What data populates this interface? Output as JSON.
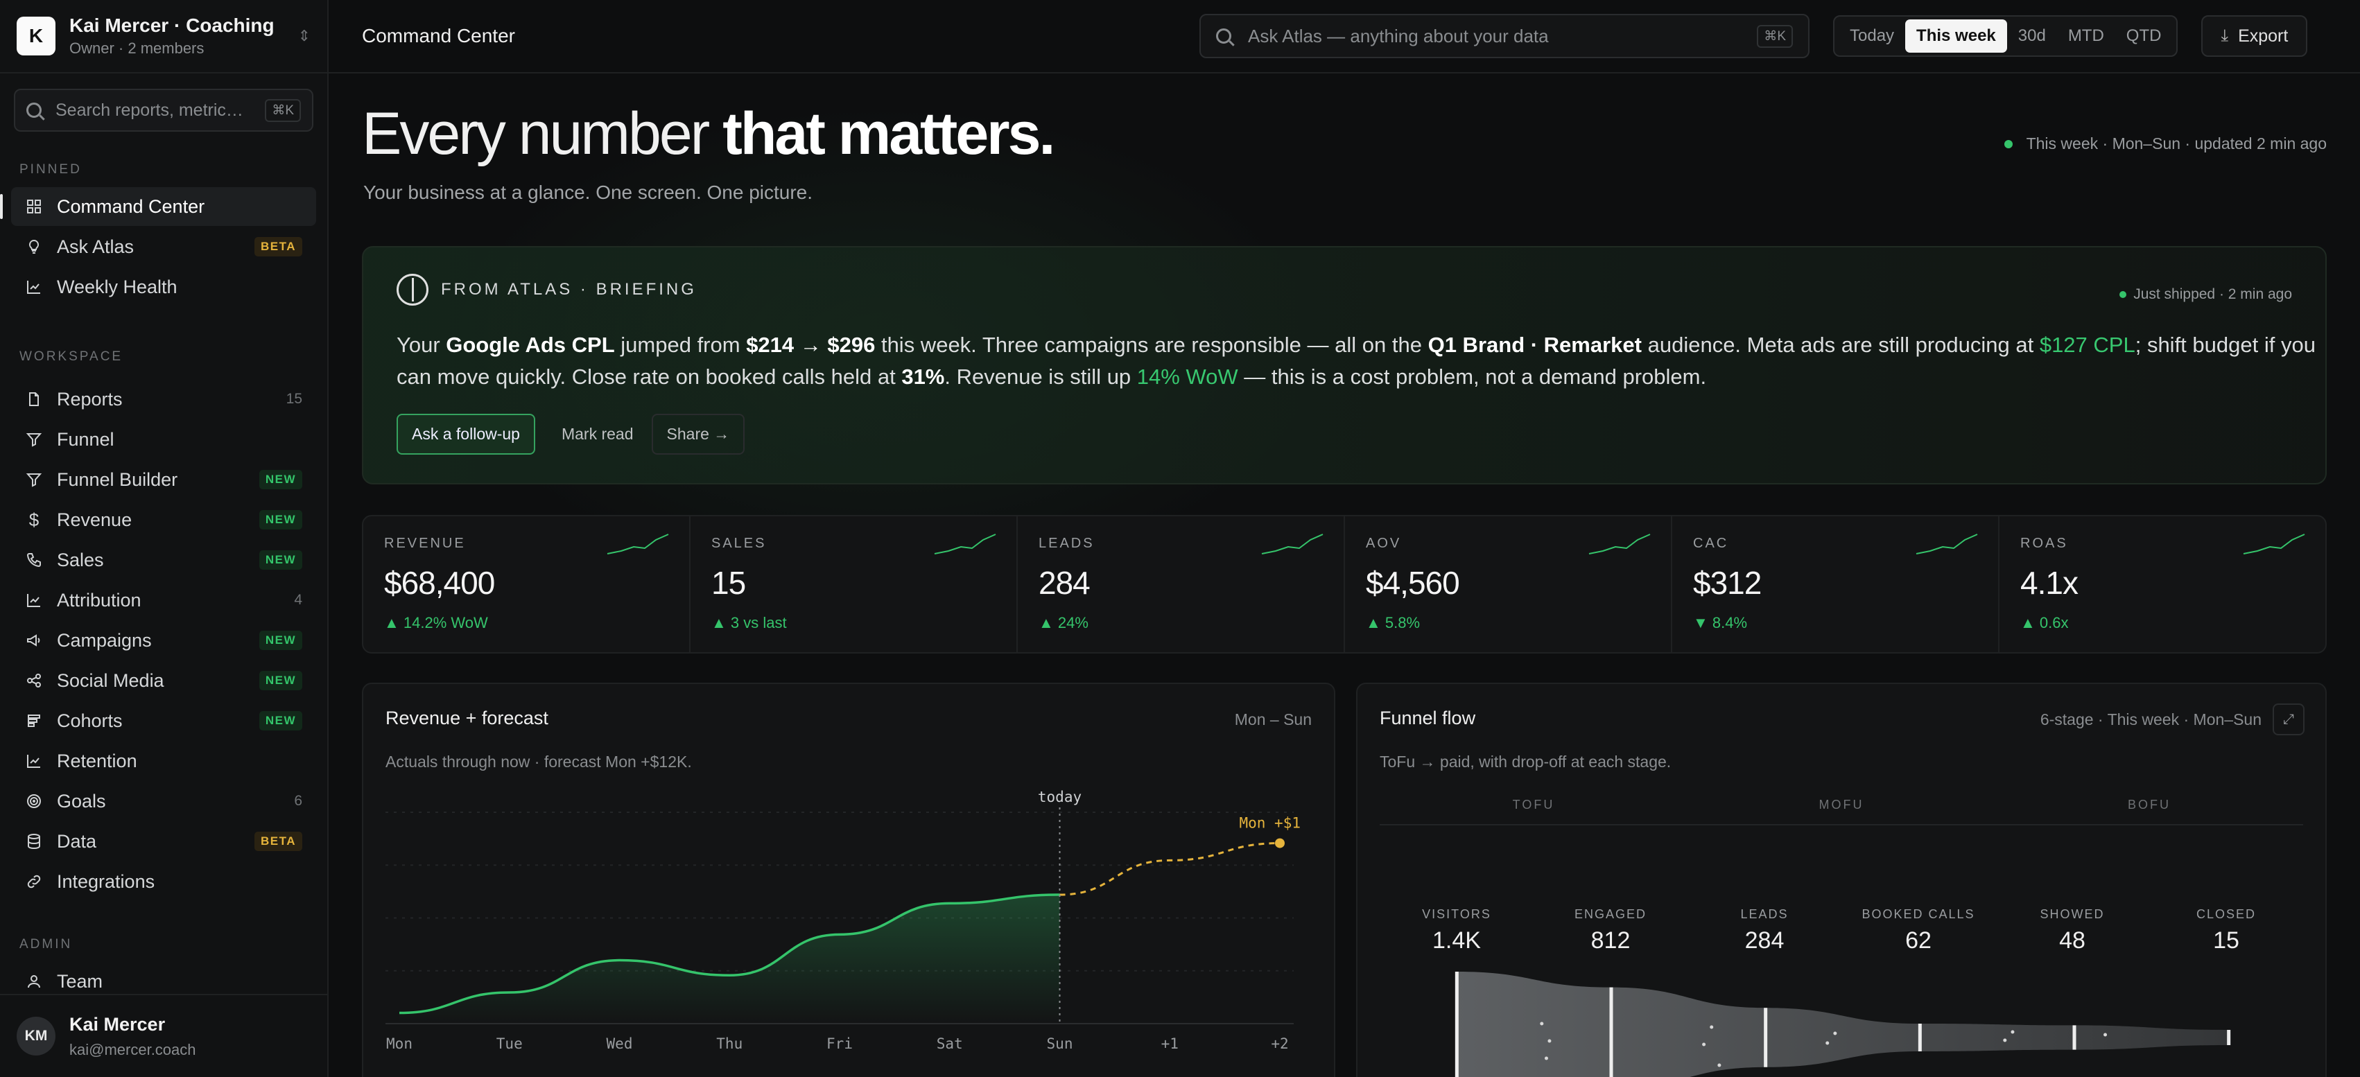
{
  "org": {
    "initial": "K",
    "name": "Kai Mercer · Coaching",
    "subtitle": "Owner · 2 members"
  },
  "sidebar_search": {
    "placeholder": "Search reports, metric…",
    "shortcut": "⌘K"
  },
  "pinned": {
    "label": "PINNED",
    "items": [
      {
        "label": "Command Center",
        "icon": "grid-icon"
      },
      {
        "label": "Ask Atlas",
        "icon": "bulb-icon",
        "badge": "BETA"
      },
      {
        "label": "Weekly Health",
        "icon": "chart-line-icon"
      }
    ]
  },
  "workspace": {
    "label": "WORKSPACE",
    "items": [
      {
        "label": "Reports",
        "icon": "file-icon",
        "count": "15"
      },
      {
        "label": "Funnel",
        "icon": "funnel-icon"
      },
      {
        "label": "Funnel Builder",
        "icon": "funnel-icon",
        "badge": "NEW"
      },
      {
        "label": "Revenue",
        "icon": "dollar-icon",
        "badge": "NEW"
      },
      {
        "label": "Sales",
        "icon": "phone-icon",
        "badge": "NEW"
      },
      {
        "label": "Attribution",
        "icon": "chart-line-icon",
        "count": "4"
      },
      {
        "label": "Campaigns",
        "icon": "megaphone-icon",
        "badge": "NEW"
      },
      {
        "label": "Social Media",
        "icon": "share-icon",
        "badge": "NEW"
      },
      {
        "label": "Cohorts",
        "icon": "stack-icon",
        "badge": "NEW"
      },
      {
        "label": "Retention",
        "icon": "chart-line-icon"
      },
      {
        "label": "Goals",
        "icon": "target-icon",
        "count": "6"
      },
      {
        "label": "Data",
        "icon": "database-icon",
        "badge": "BETA"
      },
      {
        "label": "Integrations",
        "icon": "link-icon"
      }
    ]
  },
  "admin": {
    "label": "ADMIN",
    "items": [
      {
        "label": "Team",
        "icon": "user-icon"
      }
    ]
  },
  "user": {
    "initials": "KM",
    "name": "Kai Mercer",
    "email": "kai@mercer.coach"
  },
  "topbar": {
    "title": "Command Center",
    "search_placeholder": "Ask Atlas — anything about your data",
    "search_shortcut": "⌘K",
    "ranges": [
      "Today",
      "This week",
      "30d",
      "MTD",
      "QTD"
    ],
    "active_range": "This week",
    "export_label": "Export"
  },
  "hero": {
    "title_light": "Every number ",
    "title_bold": "that matters.",
    "subtitle": "Your business at a glance. One screen. One picture.",
    "status": "This week · Mon–Sun · updated 2 min ago"
  },
  "briefing": {
    "label": "FROM ATLAS · BRIEFING",
    "status": "Just shipped · 2 min ago",
    "text": {
      "p1": "Your ",
      "b1": "Google Ads CPL",
      "p2": " jumped from ",
      "b2": "$214 → $296",
      "p3": " this week. Three campaigns are responsible — all on the ",
      "b3": "Q1 Brand · Remarket",
      "p4": " audience. Meta ads are still producing at ",
      "g1": "$127 CPL",
      "p5": "; shift budget if you can move quickly. Close rate on booked calls held at ",
      "b4": "31%",
      "p6": ". Revenue is still up ",
      "g2": "14% WoW",
      "p7": " — this is a cost problem, not a demand problem."
    },
    "actions": {
      "primary": "Ask a follow-up",
      "secondary": "Mark read",
      "share": "Share →"
    }
  },
  "kpis": [
    {
      "label": "REVENUE",
      "value": "$68,400",
      "delta": "▲ 14.2% WoW"
    },
    {
      "label": "SALES",
      "value": "15",
      "delta": "▲ 3 vs last"
    },
    {
      "label": "LEADS",
      "value": "284",
      "delta": "▲ 24%"
    },
    {
      "label": "AOV",
      "value": "$4,560",
      "delta": "▲ 5.8%"
    },
    {
      "label": "CAC",
      "value": "$312",
      "delta": "▼ 8.4%"
    },
    {
      "label": "ROAS",
      "value": "4.1x",
      "delta": "▲ 0.6x"
    }
  ],
  "colors": {
    "accent_green": "#35c46b",
    "forecast_yellow": "#e6b43c",
    "background": "#0d0e0f"
  },
  "revenue_panel": {
    "title": "Revenue + forecast",
    "range": "Mon – Sun",
    "subtitle": "Actuals through now · forecast Mon +$12K.",
    "today_label": "today",
    "forecast_label": "Mon +$1"
  },
  "chart_data": {
    "type": "line",
    "x": [
      "Mon",
      "Tue",
      "Wed",
      "Thu",
      "Fri",
      "Sat",
      "Sun",
      "+1",
      "+2"
    ],
    "series": [
      {
        "values": [
          0.5,
          1.45,
          2.95,
          2.25,
          4.15,
          5.6,
          6.0,
          null,
          null
        ]
      },
      {
        "values": [
          null,
          null,
          null,
          null,
          null,
          null,
          6.0,
          7.6,
          8.4
        ]
      }
    ],
    "ylim": [
      0,
      10
    ],
    "grid": true
  },
  "funnel_panel": {
    "title": "Funnel flow",
    "meta": "6-stage · This week · Mon–Sun",
    "subtitle": "ToFu → paid, with drop-off at each stage.",
    "bands": [
      "TOFU",
      "MOFU",
      "BOFU"
    ],
    "stages": [
      {
        "label": "VISITORS",
        "value": "1.4K",
        "n": 1400
      },
      {
        "label": "ENGAGED",
        "value": "812",
        "n": 812
      },
      {
        "label": "LEADS",
        "value": "284",
        "n": 284
      },
      {
        "label": "BOOKED CALLS",
        "value": "62",
        "n": 62
      },
      {
        "label": "SHOWED",
        "value": "48",
        "n": 48
      },
      {
        "label": "CLOSED",
        "value": "15",
        "n": 15
      }
    ]
  }
}
